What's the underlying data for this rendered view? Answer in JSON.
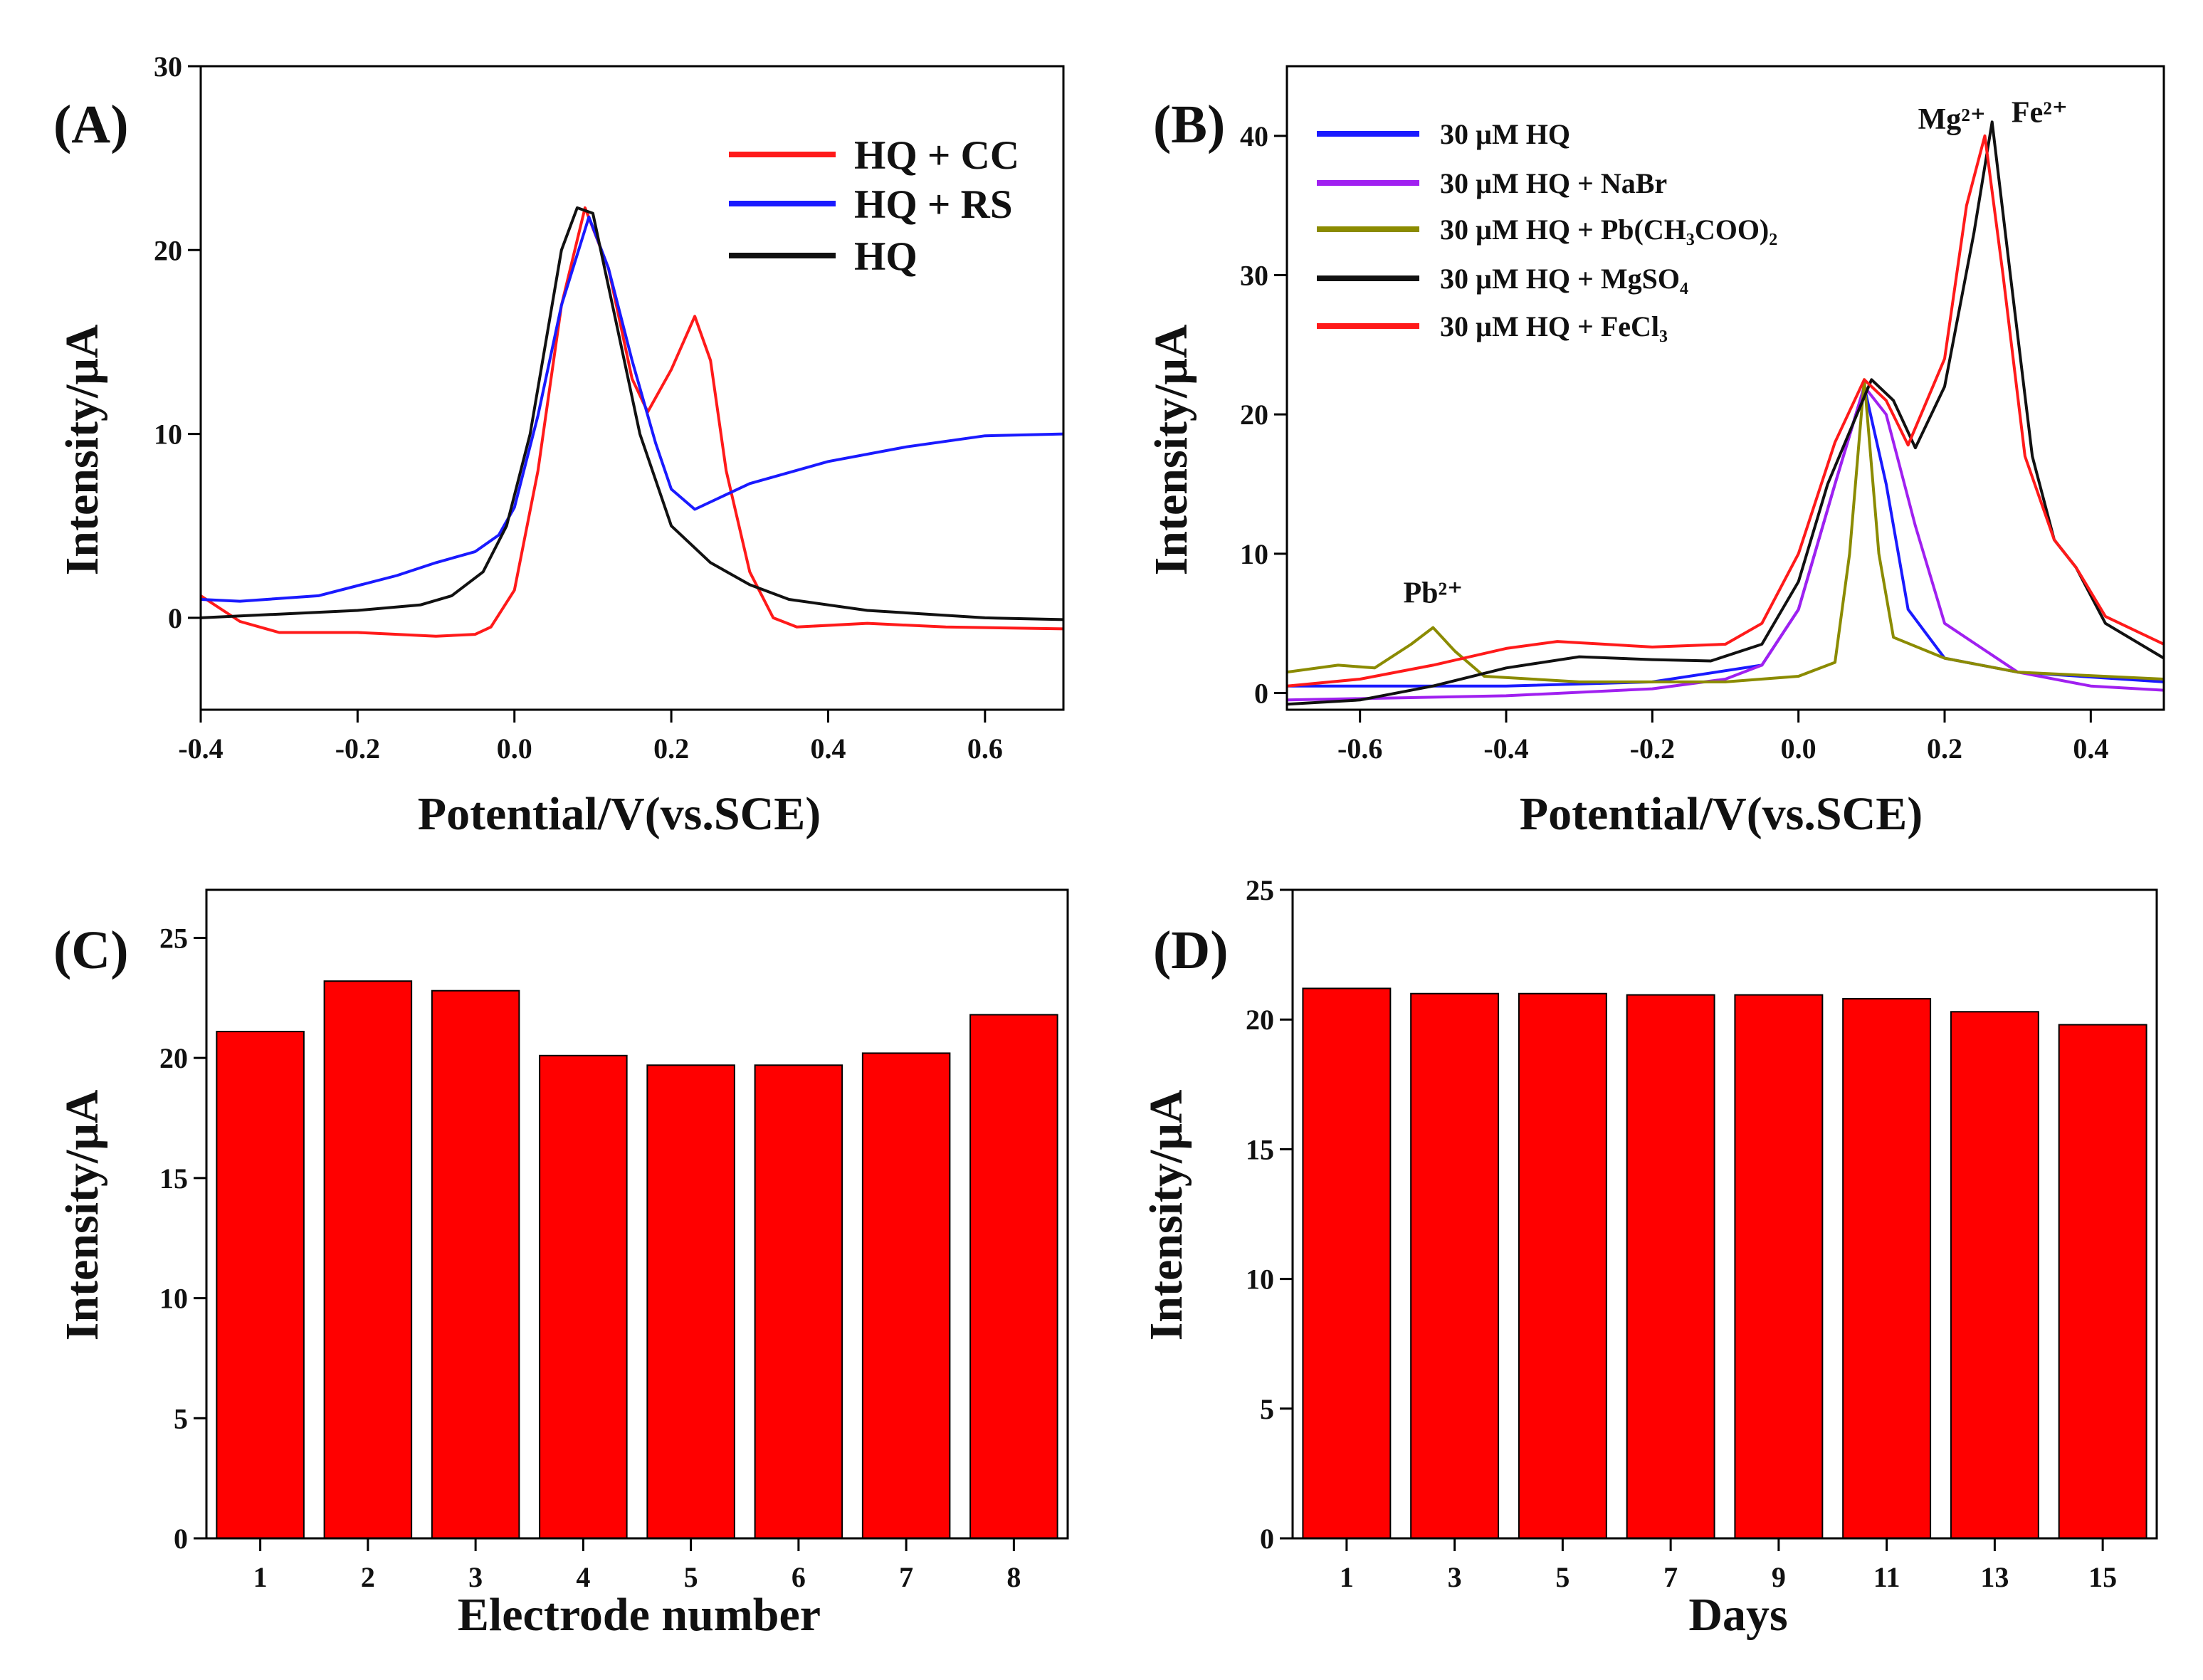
{
  "chart_data": [
    {
      "panel": "(A)",
      "type": "line",
      "xlabel": "Potential/V(vs.SCE)",
      "ylabel": "Intensity/μA",
      "xlim": [
        -0.4,
        0.7
      ],
      "ylim": [
        -5,
        30
      ],
      "xticks": [
        "-0.4",
        "-0.2",
        "0.0",
        "0.2",
        "0.4",
        "0.6"
      ],
      "xtick_values": [
        -0.4,
        -0.2,
        0.0,
        0.2,
        0.4,
        0.6
      ],
      "yticks": [
        "0",
        "10",
        "20",
        "30"
      ],
      "ytick_values": [
        0,
        10,
        20,
        30
      ],
      "grid": false,
      "legend_position": "top-right",
      "series": [
        {
          "name": "HQ + CC",
          "color": "#ff1a1a",
          "points": [
            [
              -0.4,
              1.2
            ],
            [
              -0.35,
              -0.2
            ],
            [
              -0.3,
              -0.8
            ],
            [
              -0.2,
              -0.8
            ],
            [
              -0.1,
              -1.0
            ],
            [
              -0.05,
              -0.9
            ],
            [
              -0.03,
              -0.5
            ],
            [
              0.0,
              1.5
            ],
            [
              0.03,
              8
            ],
            [
              0.06,
              17
            ],
            [
              0.09,
              22.3
            ],
            [
              0.12,
              19
            ],
            [
              0.15,
              13
            ],
            [
              0.17,
              11.2
            ],
            [
              0.2,
              13.5
            ],
            [
              0.23,
              16.4
            ],
            [
              0.25,
              14
            ],
            [
              0.27,
              8
            ],
            [
              0.3,
              2.5
            ],
            [
              0.33,
              0
            ],
            [
              0.36,
              -0.5
            ],
            [
              0.45,
              -0.3
            ],
            [
              0.55,
              -0.5
            ],
            [
              0.7,
              -0.6
            ]
          ]
        },
        {
          "name": "HQ + RS",
          "color": "#1a1aff",
          "points": [
            [
              -0.4,
              1.0
            ],
            [
              -0.35,
              0.9
            ],
            [
              -0.25,
              1.2
            ],
            [
              -0.15,
              2.3
            ],
            [
              -0.1,
              3.0
            ],
            [
              -0.05,
              3.6
            ],
            [
              -0.02,
              4.5
            ],
            [
              0.0,
              6
            ],
            [
              0.03,
              11
            ],
            [
              0.06,
              17
            ],
            [
              0.095,
              21.8
            ],
            [
              0.12,
              19
            ],
            [
              0.15,
              14
            ],
            [
              0.18,
              9.5
            ],
            [
              0.2,
              7
            ],
            [
              0.23,
              5.9
            ],
            [
              0.27,
              6.7
            ],
            [
              0.3,
              7.3
            ],
            [
              0.4,
              8.5
            ],
            [
              0.5,
              9.3
            ],
            [
              0.6,
              9.9
            ],
            [
              0.7,
              10
            ]
          ]
        },
        {
          "name": "HQ",
          "color": "#111111",
          "points": [
            [
              -0.4,
              0
            ],
            [
              -0.3,
              0.2
            ],
            [
              -0.2,
              0.4
            ],
            [
              -0.12,
              0.7
            ],
            [
              -0.08,
              1.2
            ],
            [
              -0.04,
              2.5
            ],
            [
              -0.01,
              5
            ],
            [
              0.02,
              10
            ],
            [
              0.06,
              20
            ],
            [
              0.08,
              22.3
            ],
            [
              0.1,
              22
            ],
            [
              0.13,
              16
            ],
            [
              0.16,
              10
            ],
            [
              0.2,
              5
            ],
            [
              0.25,
              3
            ],
            [
              0.3,
              1.8
            ],
            [
              0.35,
              1
            ],
            [
              0.45,
              0.4
            ],
            [
              0.6,
              0
            ],
            [
              0.7,
              -0.1
            ]
          ]
        }
      ]
    },
    {
      "panel": "(B)",
      "type": "line",
      "xlabel": "Potential/V(vs.SCE)",
      "ylabel": "Intensity/μA",
      "xlim": [
        -0.7,
        0.5
      ],
      "ylim": [
        -1.2,
        45
      ],
      "xticks": [
        "-0.6",
        "-0.4",
        "-0.2",
        "0.0",
        "0.2",
        "0.4"
      ],
      "xtick_values": [
        -0.6,
        -0.4,
        -0.2,
        0.0,
        0.2,
        0.4
      ],
      "yticks": [
        "0",
        "10",
        "20",
        "30",
        "40"
      ],
      "ytick_values": [
        0,
        10,
        20,
        30,
        40
      ],
      "grid": false,
      "legend_position": "top-left",
      "annotations": [
        {
          "text": "Pb²⁺",
          "x": -0.5,
          "y": 6.5
        },
        {
          "text": "Mg²⁺",
          "x": 0.21,
          "y": 40.5
        },
        {
          "text": "Fe²⁺",
          "x": 0.33,
          "y": 41
        }
      ],
      "series": [
        {
          "name": "30 µM HQ",
          "color": "#1a1aff",
          "points": [
            [
              -0.7,
              0.5
            ],
            [
              -0.4,
              0.5
            ],
            [
              -0.2,
              0.8
            ],
            [
              -0.05,
              2
            ],
            [
              0,
              6
            ],
            [
              0.05,
              15
            ],
            [
              0.09,
              22
            ],
            [
              0.12,
              15
            ],
            [
              0.15,
              6
            ],
            [
              0.2,
              2.5
            ],
            [
              0.3,
              1.5
            ],
            [
              0.5,
              0.8
            ]
          ]
        },
        {
          "name": "30 µM HQ + NaBr",
          "color": "#a020f0",
          "points": [
            [
              -0.7,
              -0.5
            ],
            [
              -0.4,
              -0.2
            ],
            [
              -0.2,
              0.3
            ],
            [
              -0.1,
              1
            ],
            [
              -0.05,
              2
            ],
            [
              0,
              6
            ],
            [
              0.05,
              15
            ],
            [
              0.09,
              22
            ],
            [
              0.12,
              20
            ],
            [
              0.16,
              12
            ],
            [
              0.2,
              5
            ],
            [
              0.3,
              1.5
            ],
            [
              0.4,
              0.5
            ],
            [
              0.5,
              0.2
            ]
          ]
        },
        {
          "name": "30 µM HQ + Pb(CH₃COO)₂",
          "color": "#8b8b00",
          "points": [
            [
              -0.7,
              1.5
            ],
            [
              -0.63,
              2
            ],
            [
              -0.58,
              1.8
            ],
            [
              -0.53,
              3.5
            ],
            [
              -0.5,
              4.7
            ],
            [
              -0.47,
              3
            ],
            [
              -0.43,
              1.2
            ],
            [
              -0.3,
              0.8
            ],
            [
              -0.1,
              0.8
            ],
            [
              0,
              1.2
            ],
            [
              0.05,
              2.2
            ],
            [
              0.07,
              10
            ],
            [
              0.09,
              22.5
            ],
            [
              0.11,
              10
            ],
            [
              0.13,
              4
            ],
            [
              0.2,
              2.5
            ],
            [
              0.3,
              1.5
            ],
            [
              0.5,
              1
            ]
          ]
        },
        {
          "name": "30 µM HQ + MgSO₄",
          "color": "#111111",
          "points": [
            [
              -0.7,
              -0.8
            ],
            [
              -0.6,
              -0.5
            ],
            [
              -0.5,
              0.5
            ],
            [
              -0.4,
              1.8
            ],
            [
              -0.3,
              2.6
            ],
            [
              -0.2,
              2.4
            ],
            [
              -0.12,
              2.3
            ],
            [
              -0.05,
              3.5
            ],
            [
              0,
              8
            ],
            [
              0.04,
              15
            ],
            [
              0.1,
              22.5
            ],
            [
              0.13,
              21
            ],
            [
              0.16,
              17.6
            ],
            [
              0.2,
              22
            ],
            [
              0.24,
              33
            ],
            [
              0.265,
              41
            ],
            [
              0.29,
              30
            ],
            [
              0.32,
              17
            ],
            [
              0.35,
              11
            ],
            [
              0.38,
              9
            ],
            [
              0.42,
              5
            ],
            [
              0.5,
              2.5
            ]
          ]
        },
        {
          "name": "30 µM HQ + FeCl₃",
          "color": "#ff1a1a",
          "points": [
            [
              -0.7,
              0.5
            ],
            [
              -0.6,
              1
            ],
            [
              -0.5,
              2
            ],
            [
              -0.4,
              3.2
            ],
            [
              -0.33,
              3.7
            ],
            [
              -0.2,
              3.3
            ],
            [
              -0.1,
              3.5
            ],
            [
              -0.05,
              5
            ],
            [
              0,
              10
            ],
            [
              0.05,
              18
            ],
            [
              0.09,
              22.5
            ],
            [
              0.12,
              21
            ],
            [
              0.15,
              17.8
            ],
            [
              0.2,
              24
            ],
            [
              0.23,
              35
            ],
            [
              0.255,
              40
            ],
            [
              0.28,
              30
            ],
            [
              0.31,
              17
            ],
            [
              0.35,
              11
            ],
            [
              0.38,
              9
            ],
            [
              0.42,
              5.5
            ],
            [
              0.5,
              3.5
            ]
          ]
        }
      ]
    },
    {
      "panel": "(C)",
      "type": "bar",
      "xlabel": "Electrode number",
      "ylabel": "Intensity/μA",
      "categories": [
        "1",
        "2",
        "3",
        "4",
        "5",
        "6",
        "7",
        "8"
      ],
      "values": [
        21.1,
        23.2,
        22.8,
        20.1,
        19.7,
        19.7,
        20.2,
        21.8
      ],
      "ylim": [
        0,
        27
      ],
      "yticks": [
        "0",
        "5",
        "10",
        "15",
        "20",
        "25"
      ],
      "ytick_values": [
        0,
        5,
        10,
        15,
        20,
        25
      ],
      "bar_color": "#ff0000",
      "grid": false
    },
    {
      "panel": "(D)",
      "type": "bar",
      "xlabel": "Days",
      "ylabel": "Intensity/μA",
      "categories": [
        "1",
        "3",
        "5",
        "7",
        "9",
        "11",
        "13",
        "15"
      ],
      "values": [
        21.2,
        21.0,
        21.0,
        20.95,
        20.95,
        20.8,
        20.3,
        19.8
      ],
      "ylim": [
        0,
        25
      ],
      "yticks": [
        "0",
        "5",
        "10",
        "15",
        "20",
        "25"
      ],
      "ytick_values": [
        0,
        5,
        10,
        15,
        20,
        25
      ],
      "bar_color": "#ff0000",
      "grid": false
    }
  ]
}
